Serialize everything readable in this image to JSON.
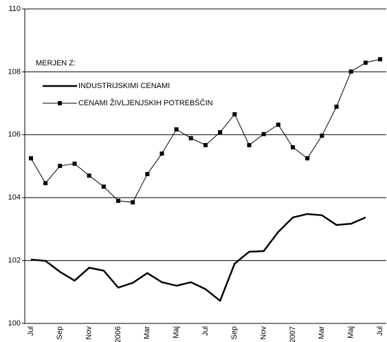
{
  "chart_data": {
    "type": "line",
    "legend_title": "MERJEN Z:",
    "categories": [
      "Jul",
      null,
      "Sep",
      null,
      "Nov",
      null,
      "2006",
      null,
      "Mar",
      null,
      "Maj",
      null,
      "Jul",
      null,
      "Sep",
      null,
      "Nov",
      null,
      "2007",
      null,
      "Mar",
      null,
      "Maj",
      null,
      "Jul"
    ],
    "series": [
      {
        "name": "INDUSTRIJSKIMI CENAMI",
        "color": "#000000",
        "marker": "none",
        "values": [
          102.03,
          101.99,
          101.64,
          101.36,
          101.77,
          101.68,
          101.14,
          101.29,
          101.6,
          101.31,
          101.2,
          101.31,
          101.09,
          100.72,
          101.9,
          102.28,
          102.3,
          102.91,
          103.37,
          103.48,
          103.44,
          103.13,
          103.17,
          103.37,
          null
        ]
      },
      {
        "name": "CENAMI ŽIVLJENJSKIH POTREBŠČIN",
        "color": "#000000",
        "marker": "square",
        "values": [
          105.25,
          104.46,
          105.01,
          105.08,
          104.7,
          104.35,
          103.9,
          103.85,
          104.75,
          105.4,
          106.17,
          105.89,
          105.67,
          106.08,
          106.65,
          105.67,
          106.02,
          106.32,
          105.6,
          105.25,
          105.97,
          106.89,
          108.01,
          108.29,
          108.4
        ]
      }
    ],
    "ylim": [
      100,
      110
    ],
    "yticks": [
      100,
      102,
      104,
      106,
      108,
      110
    ],
    "grid": true
  }
}
